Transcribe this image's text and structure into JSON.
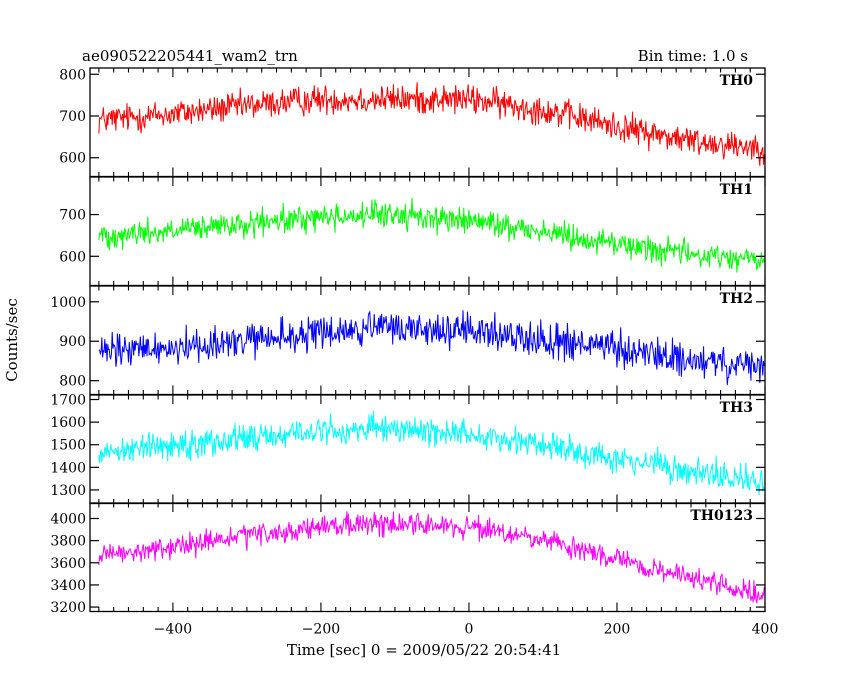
{
  "header": {
    "title": "ae090522205441_wam2_trn",
    "bin_time": "Bin time: 1.0 s"
  },
  "chart_data": {
    "type": "line",
    "xlabel": "Time [sec] 0 = 2009/05/22 20:54:41",
    "ylabel": "Counts/sec",
    "xlim": [
      -512,
      400
    ],
    "x_ticks": [
      -400,
      -200,
      0,
      200,
      400
    ],
    "x_tick_labels": [
      "−400",
      "−200",
      "0",
      "200",
      "400"
    ],
    "x_range": [
      -500,
      399
    ],
    "bin_time": 1.0,
    "panels": [
      {
        "name": "TH0",
        "color": "#ff0000",
        "ylim": [
          555,
          815
        ],
        "yticks": [
          600,
          700,
          800
        ],
        "noise": 28,
        "trend": [
          [
            -500,
            690
          ],
          [
            -400,
            705
          ],
          [
            -300,
            725
          ],
          [
            -200,
            740
          ],
          [
            -100,
            740
          ],
          [
            0,
            740
          ],
          [
            100,
            715
          ],
          [
            200,
            675
          ],
          [
            300,
            640
          ],
          [
            399,
            625
          ]
        ]
      },
      {
        "name": "TH1",
        "color": "#00ff00",
        "ylim": [
          530,
          790
        ],
        "yticks": [
          600,
          700
        ],
        "noise": 25,
        "trend": [
          [
            -500,
            650
          ],
          [
            -400,
            660
          ],
          [
            -300,
            675
          ],
          [
            -200,
            695
          ],
          [
            -100,
            700
          ],
          [
            0,
            685
          ],
          [
            100,
            660
          ],
          [
            200,
            630
          ],
          [
            300,
            605
          ],
          [
            399,
            590
          ]
        ]
      },
      {
        "name": "TH2",
        "color": "#0000ff",
        "ylim": [
          765,
          1040
        ],
        "yticks": [
          800,
          900,
          1000
        ],
        "noise": 35,
        "trend": [
          [
            -500,
            870
          ],
          [
            -400,
            885
          ],
          [
            -300,
            900
          ],
          [
            -200,
            920
          ],
          [
            -100,
            935
          ],
          [
            0,
            925
          ],
          [
            100,
            905
          ],
          [
            200,
            880
          ],
          [
            300,
            850
          ],
          [
            399,
            830
          ]
        ]
      },
      {
        "name": "TH3",
        "color": "#00ffff",
        "ylim": [
          1240,
          1720
        ],
        "yticks": [
          1300,
          1400,
          1500,
          1600,
          1700
        ],
        "noise": 50,
        "trend": [
          [
            -500,
            1470
          ],
          [
            -400,
            1500
          ],
          [
            -300,
            1530
          ],
          [
            -200,
            1560
          ],
          [
            -100,
            1570
          ],
          [
            0,
            1550
          ],
          [
            100,
            1500
          ],
          [
            200,
            1440
          ],
          [
            300,
            1380
          ],
          [
            399,
            1330
          ]
        ]
      },
      {
        "name": "TH0123",
        "color": "#ff00ff",
        "ylim": [
          3160,
          4140
        ],
        "yticks": [
          3200,
          3400,
          3600,
          3800,
          4000
        ],
        "yticks_wrapped_note": "",
        "noise": 80,
        "trend": [
          [
            -500,
            3650
          ],
          [
            -400,
            3740
          ],
          [
            -300,
            3840
          ],
          [
            -200,
            3920
          ],
          [
            -100,
            3960
          ],
          [
            0,
            3920
          ],
          [
            100,
            3800
          ],
          [
            200,
            3630
          ],
          [
            300,
            3460
          ],
          [
            399,
            3300
          ]
        ]
      }
    ]
  }
}
